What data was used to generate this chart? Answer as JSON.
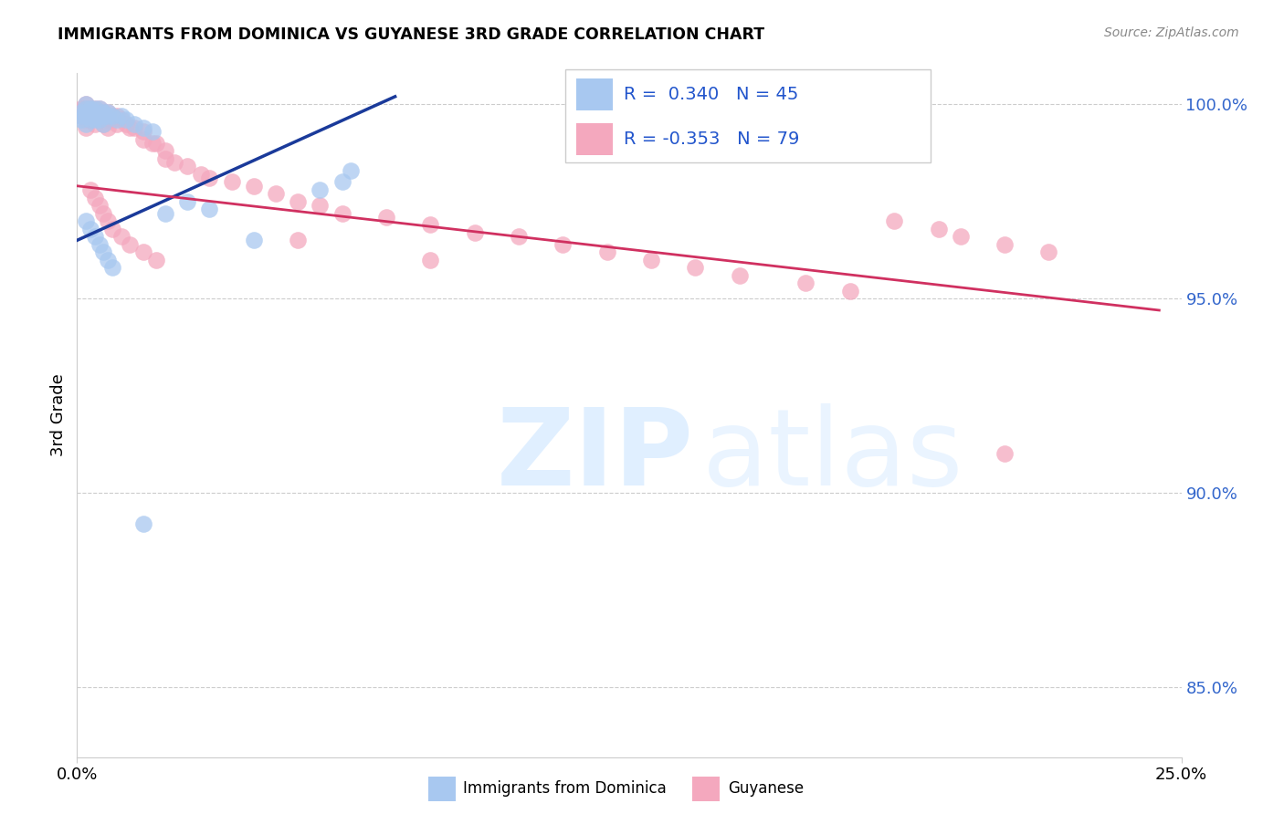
{
  "title": "IMMIGRANTS FROM DOMINICA VS GUYANESE 3RD GRADE CORRELATION CHART",
  "source": "Source: ZipAtlas.com",
  "ylabel": "3rd Grade",
  "ytick_vals": [
    0.85,
    0.9,
    0.95,
    1.0
  ],
  "ytick_labels": [
    "85.0%",
    "90.0%",
    "95.0%",
    "100.0%"
  ],
  "xtick_labels": [
    "0.0%",
    "25.0%"
  ],
  "xmin": 0.0,
  "xmax": 0.25,
  "ymin": 0.832,
  "ymax": 1.008,
  "legend_label1": "Immigrants from Dominica",
  "legend_label2": "Guyanese",
  "R1": 0.34,
  "N1": 45,
  "R2": -0.353,
  "N2": 79,
  "color_blue": "#a8c8f0",
  "color_pink": "#f4a8be",
  "color_blue_line": "#1a3a9a",
  "color_pink_line": "#d03060",
  "blue_line_x0": 0.0,
  "blue_line_x1": 0.072,
  "blue_line_y0": 0.965,
  "blue_line_y1": 1.002,
  "pink_line_x0": 0.0,
  "pink_line_x1": 0.245,
  "pink_line_y0": 0.979,
  "pink_line_y1": 0.947,
  "blue_x": [
    0.001,
    0.001,
    0.001,
    0.002,
    0.002,
    0.002,
    0.002,
    0.002,
    0.003,
    0.003,
    0.003,
    0.003,
    0.004,
    0.004,
    0.004,
    0.005,
    0.005,
    0.005,
    0.006,
    0.006,
    0.006,
    0.007,
    0.007,
    0.008,
    0.009,
    0.01,
    0.011,
    0.013,
    0.015,
    0.017,
    0.02,
    0.025,
    0.03,
    0.04,
    0.055,
    0.06,
    0.062,
    0.002,
    0.003,
    0.004,
    0.005,
    0.006,
    0.007,
    0.008,
    0.015
  ],
  "blue_y": [
    0.998,
    0.997,
    0.996,
    1.0,
    0.999,
    0.998,
    0.997,
    0.995,
    0.999,
    0.998,
    0.997,
    0.996,
    0.999,
    0.998,
    0.996,
    0.999,
    0.997,
    0.996,
    0.998,
    0.997,
    0.995,
    0.998,
    0.997,
    0.997,
    0.996,
    0.997,
    0.996,
    0.995,
    0.994,
    0.993,
    0.972,
    0.975,
    0.973,
    0.965,
    0.978,
    0.98,
    0.983,
    0.97,
    0.968,
    0.966,
    0.964,
    0.962,
    0.96,
    0.958,
    0.892
  ],
  "pink_x": [
    0.001,
    0.001,
    0.001,
    0.002,
    0.002,
    0.002,
    0.002,
    0.002,
    0.002,
    0.003,
    0.003,
    0.003,
    0.003,
    0.004,
    0.004,
    0.004,
    0.004,
    0.005,
    0.005,
    0.005,
    0.006,
    0.006,
    0.006,
    0.007,
    0.007,
    0.007,
    0.008,
    0.008,
    0.009,
    0.009,
    0.01,
    0.011,
    0.012,
    0.013,
    0.015,
    0.015,
    0.017,
    0.018,
    0.02,
    0.02,
    0.022,
    0.025,
    0.028,
    0.03,
    0.035,
    0.04,
    0.045,
    0.05,
    0.055,
    0.06,
    0.07,
    0.08,
    0.09,
    0.1,
    0.11,
    0.12,
    0.13,
    0.14,
    0.15,
    0.165,
    0.175,
    0.185,
    0.195,
    0.2,
    0.21,
    0.22,
    0.003,
    0.004,
    0.005,
    0.006,
    0.007,
    0.008,
    0.01,
    0.012,
    0.015,
    0.018,
    0.05,
    0.08,
    0.21
  ],
  "pink_y": [
    0.999,
    0.998,
    0.997,
    1.0,
    0.999,
    0.998,
    0.997,
    0.996,
    0.994,
    0.999,
    0.998,
    0.997,
    0.996,
    0.999,
    0.998,
    0.997,
    0.995,
    0.999,
    0.997,
    0.996,
    0.998,
    0.997,
    0.995,
    0.998,
    0.996,
    0.994,
    0.997,
    0.996,
    0.997,
    0.995,
    0.996,
    0.995,
    0.994,
    0.994,
    0.993,
    0.991,
    0.99,
    0.99,
    0.988,
    0.986,
    0.985,
    0.984,
    0.982,
    0.981,
    0.98,
    0.979,
    0.977,
    0.975,
    0.974,
    0.972,
    0.971,
    0.969,
    0.967,
    0.966,
    0.964,
    0.962,
    0.96,
    0.958,
    0.956,
    0.954,
    0.952,
    0.97,
    0.968,
    0.966,
    0.964,
    0.962,
    0.978,
    0.976,
    0.974,
    0.972,
    0.97,
    0.968,
    0.966,
    0.964,
    0.962,
    0.96,
    0.965,
    0.96,
    0.91
  ]
}
